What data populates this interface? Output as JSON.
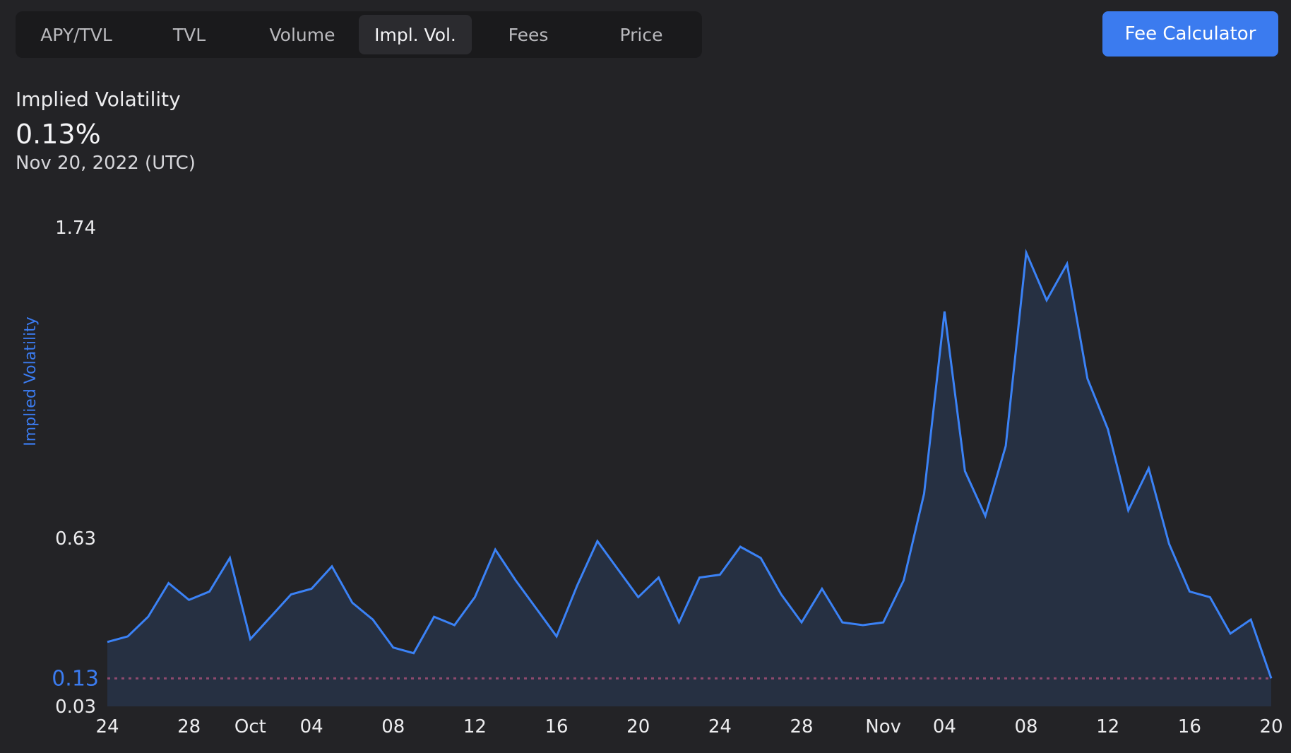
{
  "tabs": [
    {
      "label": "APY/TVL",
      "active": false
    },
    {
      "label": "TVL",
      "active": false
    },
    {
      "label": "Volume",
      "active": false
    },
    {
      "label": "Impl. Vol.",
      "active": true
    },
    {
      "label": "Fees",
      "active": false
    },
    {
      "label": "Price",
      "active": false
    }
  ],
  "fee_button_label": "Fee Calculator",
  "metric": {
    "label": "Implied Volatility",
    "value": "0.13%",
    "date": "Nov 20, 2022 (UTC)"
  },
  "colors": {
    "accent": "#3b7bef",
    "line": "#3b82f6",
    "area": "#263042",
    "reference_line": "#8e4a6e",
    "background": "#232326"
  },
  "chart_data": {
    "type": "area",
    "ylabel": "Implied Volatility",
    "yticks": [
      "1.74",
      "0.63",
      "0.03"
    ],
    "current_value_label": "0.13",
    "reference_line": 0.13,
    "ylim": [
      0.03,
      1.74
    ],
    "x_tick_labels": [
      "24",
      "28",
      "Oct",
      "04",
      "08",
      "12",
      "16",
      "20",
      "24",
      "28",
      "Nov",
      "04",
      "08",
      "12",
      "16",
      "20"
    ],
    "x": [
      "2022-09-24",
      "2022-09-25",
      "2022-09-26",
      "2022-09-27",
      "2022-09-28",
      "2022-09-29",
      "2022-09-30",
      "2022-10-01",
      "2022-10-02",
      "2022-10-03",
      "2022-10-04",
      "2022-10-05",
      "2022-10-06",
      "2022-10-07",
      "2022-10-08",
      "2022-10-09",
      "2022-10-10",
      "2022-10-11",
      "2022-10-12",
      "2022-10-13",
      "2022-10-14",
      "2022-10-15",
      "2022-10-16",
      "2022-10-17",
      "2022-10-18",
      "2022-10-19",
      "2022-10-20",
      "2022-10-21",
      "2022-10-22",
      "2022-10-23",
      "2022-10-24",
      "2022-10-25",
      "2022-10-26",
      "2022-10-27",
      "2022-10-28",
      "2022-10-29",
      "2022-10-30",
      "2022-10-31",
      "2022-11-01",
      "2022-11-02",
      "2022-11-03",
      "2022-11-04",
      "2022-11-05",
      "2022-11-06",
      "2022-11-07",
      "2022-11-08",
      "2022-11-09",
      "2022-11-10",
      "2022-11-11",
      "2022-11-12",
      "2022-11-13",
      "2022-11-14",
      "2022-11-15",
      "2022-11-16",
      "2022-11-17",
      "2022-11-18",
      "2022-11-19",
      "2022-11-20"
    ],
    "series": [
      {
        "values": [
          0.26,
          0.28,
          0.35,
          0.47,
          0.41,
          0.44,
          0.56,
          0.27,
          0.35,
          0.43,
          0.45,
          0.53,
          0.4,
          0.34,
          0.24,
          0.22,
          0.35,
          0.32,
          0.42,
          0.59,
          0.48,
          0.38,
          0.28,
          0.46,
          0.62,
          0.52,
          0.42,
          0.49,
          0.33,
          0.49,
          0.5,
          0.6,
          0.56,
          0.43,
          0.33,
          0.45,
          0.33,
          0.32,
          0.33,
          0.48,
          0.79,
          1.44,
          0.87,
          0.71,
          0.96,
          1.65,
          1.48,
          1.61,
          1.2,
          1.02,
          0.73,
          0.88,
          0.61,
          0.44,
          0.42,
          0.29,
          0.34,
          0.13
        ]
      }
    ]
  }
}
